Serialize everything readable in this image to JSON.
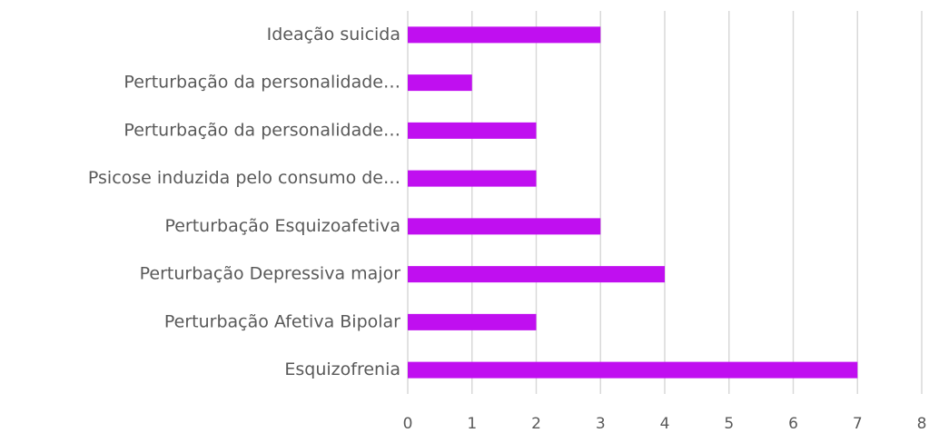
{
  "chart_data": {
    "type": "bar",
    "orientation": "horizontal",
    "categories": [
      "Ideação suicida",
      "Perturbação da personalidade…",
      "Perturbação da personalidade…",
      "Psicose induzida pelo consumo de…",
      "Perturbação Esquizoafetiva",
      "Perturbação Depressiva major",
      "Perturbação Afetiva Bipolar",
      "Esquizofrenia"
    ],
    "values": [
      3,
      1,
      2,
      2,
      3,
      4,
      2,
      7
    ],
    "color": "#c00ff0",
    "xlim": [
      0,
      8
    ],
    "xticks": [
      0,
      1,
      2,
      3,
      4,
      5,
      6,
      7,
      8
    ],
    "grid": true
  }
}
